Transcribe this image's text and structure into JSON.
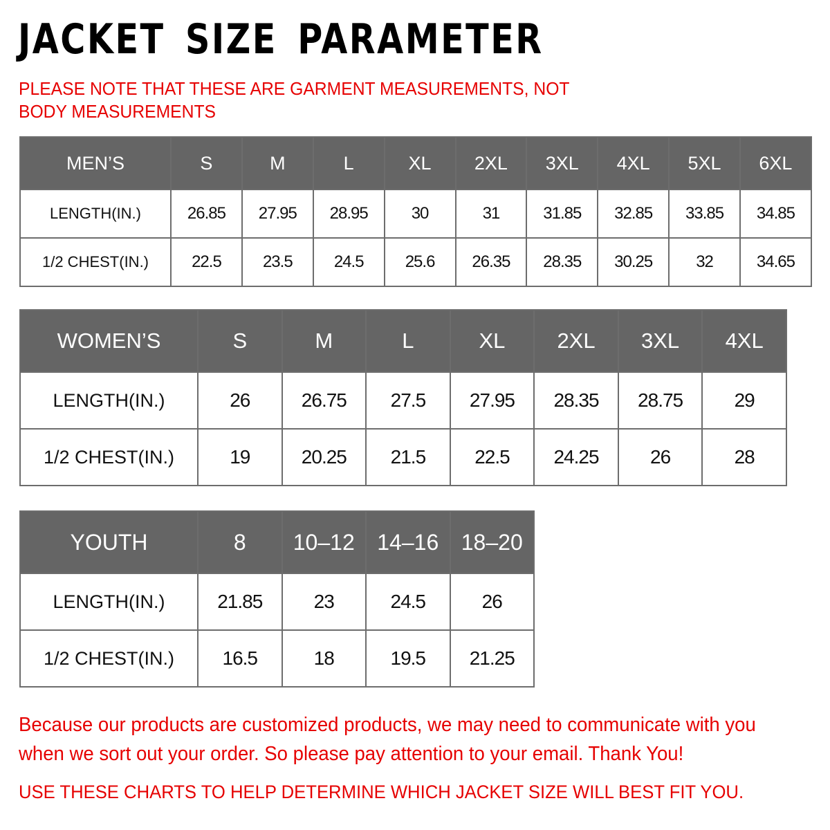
{
  "title": "JACKET SIZE PARAMETER",
  "note": "PLEASE NOTE THAT THESE ARE GARMENT MEASUREMENTS, NOT BODY MEASUREMENTS",
  "tables": {
    "men": {
      "header": [
        "MEN’S",
        "S",
        "M",
        "L",
        "XL",
        "2XL",
        "3XL",
        "4XL",
        "5XL",
        "6XL"
      ],
      "rows": [
        [
          "LENGTH(IN.)",
          "26.85",
          "27.95",
          "28.95",
          "30",
          "31",
          "31.85",
          "32.85",
          "33.85",
          "34.85"
        ],
        [
          "1/2 CHEST(IN.)",
          "22.5",
          "23.5",
          "24.5",
          "25.6",
          "26.35",
          "28.35",
          "30.25",
          "32",
          "34.65"
        ]
      ]
    },
    "women": {
      "header": [
        "WOMEN’S",
        "S",
        "M",
        "L",
        "XL",
        "2XL",
        "3XL",
        "4XL"
      ],
      "rows": [
        [
          "LENGTH(IN.)",
          "26",
          "26.75",
          "27.5",
          "27.95",
          "28.35",
          "28.75",
          "29"
        ],
        [
          "1/2 CHEST(IN.)",
          "19",
          "20.25",
          "21.5",
          "22.5",
          "24.25",
          "26",
          "28"
        ]
      ]
    },
    "youth": {
      "header": [
        "YOUTH",
        "8",
        "10–12",
        "14–16",
        "18–20"
      ],
      "rows": [
        [
          "LENGTH(IN.)",
          "21.85",
          "23",
          "24.5",
          "26"
        ],
        [
          "1/2 CHEST(IN.)",
          "16.5",
          "18",
          "19.5",
          "21.25"
        ]
      ]
    }
  },
  "footer": {
    "message": "Because our products are customized products, we may need to communicate with you when we sort out your order. So please pay attention to your email. Thank You!",
    "advice": "USE THESE CHARTS TO HELP DETERMINE WHICH JACKET SIZE WILL BEST FIT YOU."
  },
  "colors": {
    "header_bg": "#656565",
    "accent_red": "#e60000"
  }
}
